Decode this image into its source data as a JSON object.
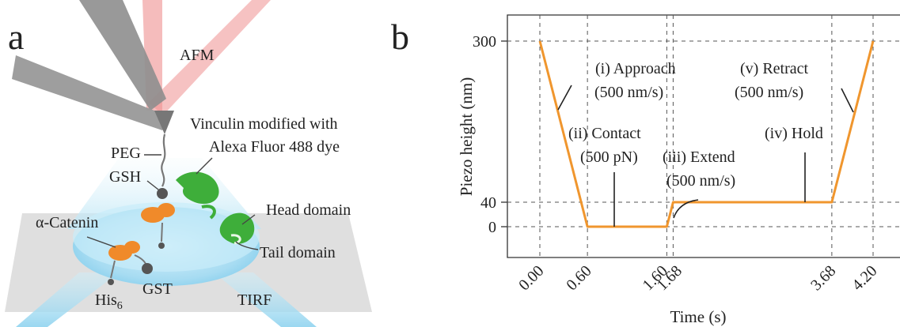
{
  "panel_a": {
    "letter": "a",
    "labels": {
      "afm": "AFM",
      "vinculin_line1": "Vinculin modified with",
      "vinculin_line2": "Alexa Fluor 488 dye",
      "peg": "PEG",
      "gsh": "GSH",
      "alpha_catenin": "α-Catenin",
      "head_domain": "Head domain",
      "tail_domain": "Tail domain",
      "gst": "GST",
      "his_base": "His",
      "his_sub": "6",
      "tirf": "TIRF"
    },
    "colors": {
      "cantilever": "#9a9a9a",
      "laser": "#ef8f8f",
      "alpha_catenin": "#f08a2a",
      "vinculin": "#3eae3a",
      "ball": "#555555",
      "tirf_light": "#9fd9f0"
    }
  },
  "panel_b": {
    "letter": "b",
    "xlabel": "Time (s)",
    "ylabel": "Piezo height (nm)",
    "x_tick_labels": [
      "0.00",
      "0.60",
      "1.60",
      "1.68",
      "3.68",
      "4.20"
    ],
    "y_tick_labels": [
      "300",
      "40",
      "0"
    ],
    "annotations": {
      "approach_1": "(i) Approach",
      "approach_2": "(500 nm/s)",
      "contact_1": "(ii) Contact",
      "contact_2": "(500 pN)",
      "extend_1": "(iii) Extend",
      "extend_2": "(500 nm/s)",
      "hold": "(iv) Hold",
      "retract_1": "(v) Retract",
      "retract_2": "(500 nm/s)"
    },
    "line_color": "#f0962e"
  },
  "chart_data": {
    "type": "line",
    "xlabel": "Time (s)",
    "ylabel": "Piezo height (nm)",
    "x": [
      0.0,
      0.6,
      1.6,
      1.68,
      3.68,
      4.2
    ],
    "series": [
      {
        "values": [
          300,
          0,
          0,
          40,
          40,
          300
        ]
      }
    ],
    "x_ticks": [
      0.0,
      0.6,
      1.6,
      1.68,
      3.68,
      4.2
    ],
    "y_ticks": [
      0,
      40,
      300
    ],
    "xlim": [
      0.0,
      4.2
    ],
    "ylim": [
      0,
      300
    ],
    "grid": "dashed guide lines at ticks",
    "annotations": [
      "(i) Approach",
      "(500 nm/s)",
      "(ii) Contact",
      "(500 pN)",
      "(iii) Extend",
      "(500 nm/s)",
      "(iv) Hold",
      "(v) Retract",
      "(500 nm/s)"
    ]
  }
}
